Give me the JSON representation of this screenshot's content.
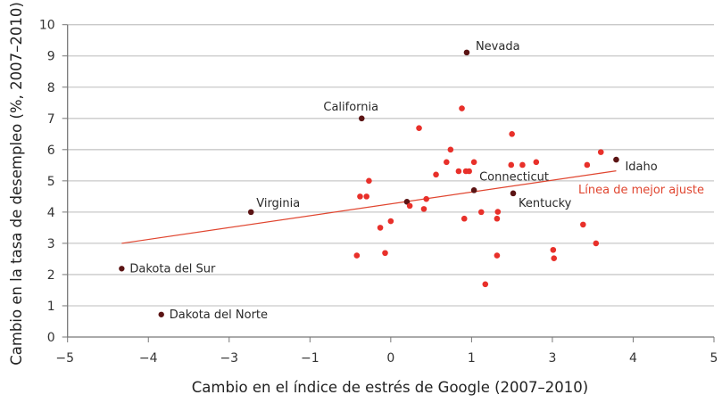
{
  "chart_data": {
    "type": "scatter",
    "title": "",
    "xlabel": "Cambio en el índice de estrés de Google (2007–2010)",
    "ylabel": "Cambio en la tasa de desempleo (%, 2007–2010)",
    "x_tick_labels": [
      "−5",
      "−4",
      "−3",
      "−1",
      "0",
      "1",
      "3",
      "4",
      "5"
    ],
    "x_tick_values": [
      -5,
      -4,
      -3,
      -1,
      0,
      1,
      3,
      4,
      5
    ],
    "y_tick_labels": [
      "0",
      "1",
      "2",
      "3",
      "4",
      "5",
      "6",
      "7",
      "8",
      "9",
      "10"
    ],
    "xlim": [
      -5,
      5
    ],
    "ylim": [
      0,
      10
    ],
    "grid": "horizontal",
    "colors": {
      "point": "#e8302a",
      "highlight": "#5b1414",
      "fit_line": "#e0452f",
      "grid": "#c9c9c9",
      "axis": "#777777"
    },
    "fit_line": {
      "label": "Línea de mejor ajuste",
      "x": [
        -4.33,
        3.79
      ],
      "y": [
        3.0,
        5.32
      ]
    },
    "points": [
      {
        "x": 0.94,
        "y": 9.11,
        "label": "Nevada"
      },
      {
        "x": -0.36,
        "y": 7.0,
        "label": "California"
      },
      {
        "x": -2.46,
        "y": 4.0,
        "label": "Virginia"
      },
      {
        "x": -4.33,
        "y": 2.19,
        "label": "Dakota del Sur"
      },
      {
        "x": -3.84,
        "y": 0.72,
        "label": "Dakota del Norte"
      },
      {
        "x": 1.06,
        "y": 4.7,
        "label": "Connecticut"
      },
      {
        "x": 2.03,
        "y": 4.6,
        "label": "Kentucky"
      },
      {
        "x": 3.79,
        "y": 5.68,
        "label": "Idaho"
      },
      {
        "x": 0.2,
        "y": 4.33,
        "label": ""
      },
      {
        "x": 0.88,
        "y": 7.32
      },
      {
        "x": 0.35,
        "y": 6.69
      },
      {
        "x": 2.0,
        "y": 6.5
      },
      {
        "x": 0.74,
        "y": 6.0
      },
      {
        "x": 3.6,
        "y": 5.92
      },
      {
        "x": 0.69,
        "y": 5.6
      },
      {
        "x": 1.06,
        "y": 5.6
      },
      {
        "x": 2.6,
        "y": 5.6
      },
      {
        "x": 1.98,
        "y": 5.51
      },
      {
        "x": 2.26,
        "y": 5.51
      },
      {
        "x": 3.43,
        "y": 5.51
      },
      {
        "x": 0.84,
        "y": 5.31
      },
      {
        "x": 0.93,
        "y": 5.31
      },
      {
        "x": 0.97,
        "y": 5.31
      },
      {
        "x": 0.56,
        "y": 5.2
      },
      {
        "x": -0.27,
        "y": 5.0
      },
      {
        "x": -0.38,
        "y": 4.5
      },
      {
        "x": -0.3,
        "y": 4.5
      },
      {
        "x": 0.44,
        "y": 4.42
      },
      {
        "x": 0.235,
        "y": 4.2
      },
      {
        "x": 0.41,
        "y": 4.1
      },
      {
        "x": 1.24,
        "y": 4.0
      },
      {
        "x": 1.65,
        "y": 4.01
      },
      {
        "x": 0.91,
        "y": 3.79
      },
      {
        "x": 1.63,
        "y": 3.79
      },
      {
        "x": 0.0,
        "y": 3.71
      },
      {
        "x": -0.13,
        "y": 3.5
      },
      {
        "x": 3.38,
        "y": 3.6
      },
      {
        "x": 3.54,
        "y": 3.0
      },
      {
        "x": 3.01,
        "y": 2.79
      },
      {
        "x": 3.02,
        "y": 2.52
      },
      {
        "x": -0.42,
        "y": 2.61
      },
      {
        "x": -0.07,
        "y": 2.69
      },
      {
        "x": 1.63,
        "y": 2.61
      },
      {
        "x": 1.34,
        "y": 1.69
      }
    ]
  }
}
